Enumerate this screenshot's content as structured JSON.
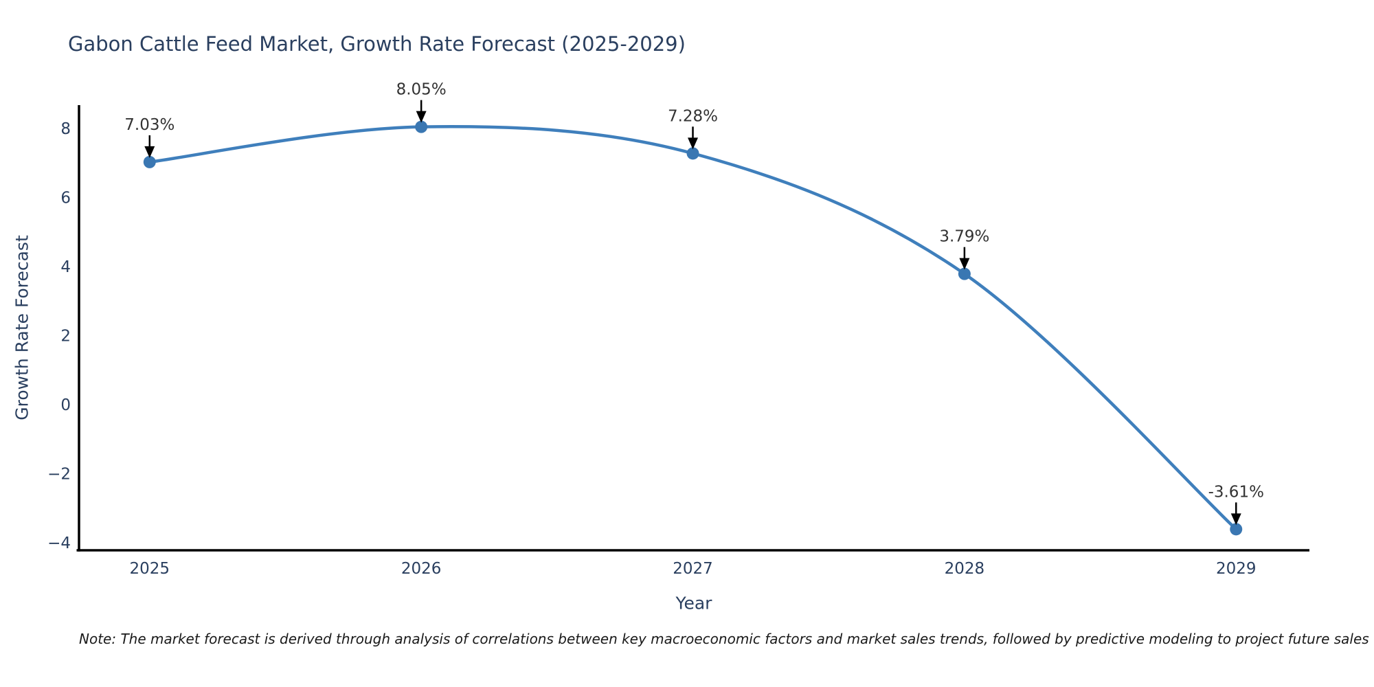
{
  "page": {
    "note": "Note: The market forecast is derived through analysis of correlations between key macroeconomic factors and market sales trends, followed by predictive modeling to project future sales"
  },
  "chart_data": {
    "type": "line",
    "title": "Gabon Cattle Feed Market, Growth Rate Forecast (2025-2029)",
    "xlabel": "Year",
    "ylabel": "Growth Rate Forecast",
    "x": [
      2025,
      2026,
      2027,
      2028,
      2029
    ],
    "series": [
      {
        "name": "Growth Rate Forecast",
        "values": [
          7.03,
          8.05,
          7.28,
          3.79,
          -3.61
        ]
      }
    ],
    "point_labels": [
      "7.03%",
      "8.05%",
      "7.28%",
      "3.79%",
      "-3.61%"
    ],
    "xticks": [
      "2025",
      "2026",
      "2027",
      "2028",
      "2029"
    ],
    "xtick_values": [
      2025,
      2026,
      2027,
      2028,
      2029
    ],
    "ytick_labels": [
      "8",
      "6",
      "4",
      "2",
      "0",
      "−2",
      "−4"
    ],
    "ytick_values": [
      8,
      6,
      4,
      2,
      0,
      -2,
      -4
    ],
    "xlim": [
      2024.74,
      2029.27
    ],
    "ylim": [
      -4.22,
      8.68
    ],
    "grid": false,
    "legend": "none",
    "line_shape": "spline",
    "annotation_arrows": true,
    "colors": {
      "line": "#3f7fbc",
      "marker": "#3a77b2",
      "title": "#2a3f5f",
      "axis_title": "#2a3f5f",
      "tick_label": "#2a3f5f",
      "annotation": "#333333",
      "arrow": "#000000",
      "spine": "#000000",
      "background": "#ffffff"
    }
  }
}
